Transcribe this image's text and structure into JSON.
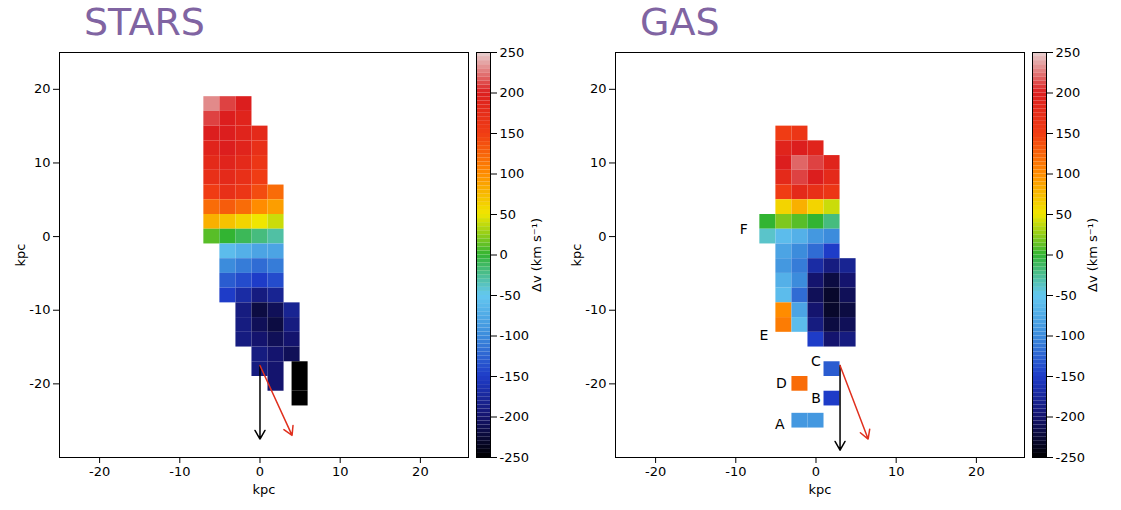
{
  "chart_data": [
    {
      "type": "heatmap",
      "title": "STARS",
      "xlabel": "kpc",
      "ylabel": "kpc",
      "xlim": [
        -25,
        26
      ],
      "ylim": [
        -30,
        25
      ],
      "xticks": [
        -20,
        -10,
        0,
        10,
        20
      ],
      "yticks": [
        -20,
        -10,
        0,
        10,
        20
      ],
      "cells": {
        "cell_size": 2,
        "x": [
          -6,
          -4,
          -2,
          -6,
          -4,
          -2,
          -6,
          -4,
          -2,
          0,
          -6,
          -4,
          -2,
          0,
          -6,
          -4,
          -2,
          0,
          -6,
          -4,
          -2,
          0,
          -6,
          -4,
          -2,
          0,
          2,
          -6,
          -4,
          -2,
          0,
          2,
          -6,
          -4,
          -2,
          0,
          2,
          -6,
          -4,
          -2,
          0,
          2,
          -4,
          -2,
          0,
          2,
          -4,
          -2,
          0,
          2,
          -4,
          -2,
          0,
          2,
          -4,
          -2,
          0,
          2,
          -2,
          0,
          2,
          4,
          -2,
          0,
          2,
          4,
          -2,
          0,
          2,
          4,
          0,
          2,
          4,
          0,
          2,
          5,
          2,
          5,
          5
        ],
        "y": [
          18,
          18,
          18,
          16,
          16,
          16,
          14,
          14,
          14,
          14,
          12,
          12,
          12,
          12,
          10,
          10,
          10,
          10,
          8,
          8,
          8,
          8,
          6,
          6,
          6,
          6,
          6,
          4,
          4,
          4,
          4,
          4,
          2,
          2,
          2,
          2,
          2,
          0,
          0,
          0,
          0,
          0,
          -2,
          -2,
          -2,
          -2,
          -4,
          -4,
          -4,
          -4,
          -6,
          -6,
          -6,
          -6,
          -8,
          -8,
          -8,
          -8,
          -10,
          -10,
          -10,
          -10,
          -12,
          -12,
          -12,
          -12,
          -14,
          -14,
          -14,
          -14,
          -16,
          -16,
          -16,
          -18,
          -18,
          -18,
          -20,
          -20,
          -22
        ],
        "values": [
          230,
          210,
          200,
          210,
          200,
          190,
          200,
          200,
          190,
          180,
          190,
          200,
          190,
          170,
          180,
          190,
          180,
          160,
          170,
          180,
          170,
          150,
          150,
          170,
          160,
          140,
          120,
          120,
          130,
          120,
          100,
          90,
          80,
          70,
          60,
          50,
          40,
          10,
          0,
          -10,
          -20,
          -30,
          -60,
          -70,
          -80,
          -80,
          -100,
          -110,
          -120,
          -110,
          -130,
          -140,
          -150,
          -140,
          -150,
          -170,
          -190,
          -180,
          -190,
          -220,
          -210,
          -180,
          -190,
          -210,
          -220,
          -190,
          -190,
          -200,
          -210,
          -200,
          -190,
          -200,
          -210,
          -190,
          -200,
          -250,
          -200,
          -250,
          -250
        ]
      },
      "colorbar": {
        "label": "Δv (km s⁻¹)",
        "range": [
          -250,
          250
        ],
        "ticks": [
          -250,
          -200,
          -150,
          -100,
          -50,
          0,
          50,
          100,
          150,
          200,
          250
        ],
        "colors": [
          "#000000",
          "#14146e",
          "#1e3cc8",
          "#3c8cdc",
          "#64c8f0",
          "#32b432",
          "#f0e600",
          "#ff8c00",
          "#f03c14",
          "#dc1e1e",
          "#e6d2d2"
        ]
      },
      "annotations": [],
      "arrows": [
        {
          "x1": 0,
          "y1": -17.5,
          "x2": 0,
          "y2": -27.5,
          "color": "#000000"
        },
        {
          "x1": 0,
          "y1": -17.5,
          "x2": 4,
          "y2": -27,
          "color": "#e0301e"
        }
      ]
    },
    {
      "type": "heatmap",
      "title": "GAS",
      "xlabel": "kpc",
      "ylabel": "kpc",
      "xlim": [
        -25,
        26
      ],
      "ylim": [
        -30,
        25
      ],
      "xticks": [
        -20,
        -10,
        0,
        10,
        20
      ],
      "yticks": [
        -20,
        -10,
        0,
        10,
        20
      ],
      "cells": {
        "cell_size": 2,
        "x": [
          -4,
          -2,
          -4,
          -2,
          0,
          -4,
          -2,
          0,
          2,
          -4,
          -2,
          0,
          2,
          -4,
          -2,
          0,
          2,
          -4,
          -2,
          0,
          2,
          -6,
          -4,
          -2,
          0,
          2,
          -6,
          -4,
          -2,
          0,
          2,
          -4,
          -2,
          0,
          2,
          -4,
          -2,
          0,
          2,
          4,
          -4,
          -2,
          0,
          2,
          4,
          -4,
          -2,
          0,
          2,
          4,
          -4,
          -2,
          0,
          2,
          4,
          -4,
          -2,
          0,
          2,
          4,
          0,
          2,
          4,
          2,
          -2,
          2,
          -2,
          0
        ],
        "y": [
          14,
          14,
          12,
          12,
          12,
          10,
          10,
          10,
          10,
          8,
          8,
          8,
          8,
          6,
          6,
          6,
          6,
          4,
          4,
          4,
          4,
          2,
          2,
          2,
          2,
          2,
          0,
          0,
          0,
          0,
          0,
          -2,
          -2,
          -2,
          -2,
          -4,
          -4,
          -4,
          -4,
          -4,
          -6,
          -6,
          -6,
          -6,
          -6,
          -8,
          -8,
          -8,
          -8,
          -8,
          -10,
          -10,
          -10,
          -10,
          -10,
          -12,
          -12,
          -12,
          -12,
          -12,
          -14,
          -14,
          -14,
          -18,
          -20,
          -22,
          -25,
          -25
        ],
        "values": [
          150,
          160,
          190,
          200,
          190,
          200,
          220,
          210,
          190,
          180,
          210,
          200,
          180,
          150,
          180,
          170,
          160,
          60,
          80,
          60,
          40,
          0,
          20,
          10,
          0,
          -20,
          -40,
          -60,
          -70,
          -90,
          -100,
          -80,
          -100,
          -120,
          -150,
          -90,
          -110,
          -170,
          -190,
          -180,
          -70,
          -100,
          -200,
          -220,
          -200,
          -60,
          -120,
          -210,
          -230,
          -210,
          100,
          -80,
          -200,
          -230,
          -220,
          110,
          -60,
          -190,
          -220,
          -210,
          -150,
          -200,
          -190,
          -130,
          120,
          -150,
          -90,
          -90
        ]
      },
      "colorbar": {
        "label": "Δv (km s⁻¹)",
        "range": [
          -250,
          250
        ],
        "ticks": [
          -250,
          -200,
          -150,
          -100,
          -50,
          0,
          50,
          100,
          150,
          200,
          250
        ],
        "colors": [
          "#000000",
          "#14146e",
          "#1e3cc8",
          "#3c8cdc",
          "#64c8f0",
          "#32b432",
          "#f0e600",
          "#ff8c00",
          "#f03c14",
          "#dc1e1e",
          "#e6d2d2"
        ]
      },
      "annotations": [
        {
          "text": "F",
          "x": -9,
          "y": 1
        },
        {
          "text": "E",
          "x": -6.5,
          "y": -13.5
        },
        {
          "text": "C",
          "x": 0,
          "y": -17
        },
        {
          "text": "D",
          "x": -4.3,
          "y": -20
        },
        {
          "text": "B",
          "x": 0,
          "y": -22
        },
        {
          "text": "A",
          "x": -4.5,
          "y": -25.5
        }
      ],
      "arrows": [
        {
          "x1": 3,
          "y1": -17.5,
          "x2": 3,
          "y2": -29,
          "color": "#000000"
        },
        {
          "x1": 3,
          "y1": -17.5,
          "x2": 6.5,
          "y2": -27.5,
          "color": "#e0301e"
        }
      ]
    }
  ]
}
